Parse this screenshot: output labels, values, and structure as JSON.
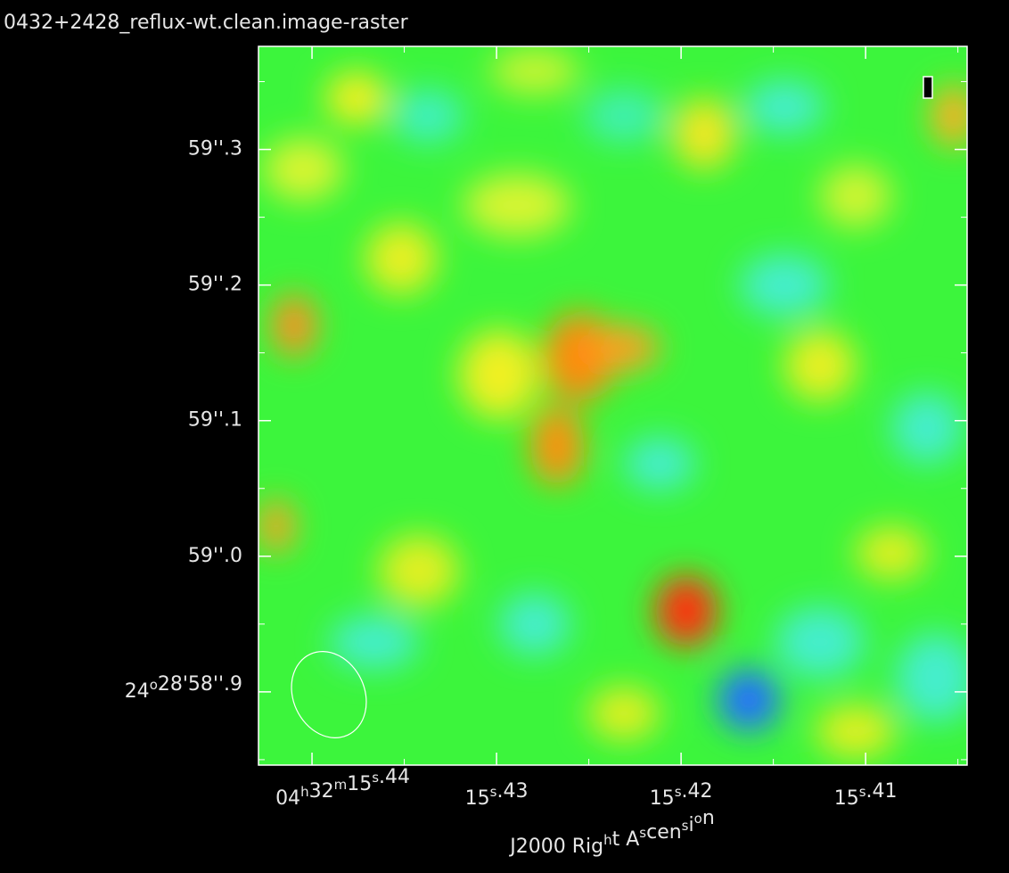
{
  "chart_data": {
    "type": "image",
    "title": "0432+2428_reflux-wt.clean.image-raster",
    "xlabel": "J2000 Right Ascension",
    "xlim": [
      15.4429,
      15.4045
    ],
    "ylim": [
      58.846,
      59.376
    ],
    "xticks": [
      {
        "value": 15.44,
        "label": "04h32m15s.44"
      },
      {
        "value": 15.43,
        "label": "15s.43"
      },
      {
        "value": 15.42,
        "label": "15s.42"
      },
      {
        "value": 15.41,
        "label": "15s.41"
      }
    ],
    "yticks": [
      {
        "value": 59.3,
        "label": "59''.3"
      },
      {
        "value": 59.2,
        "label": "59''.2"
      },
      {
        "value": 59.1,
        "label": "59''.1"
      },
      {
        "value": 59.0,
        "label": "59''.0"
      },
      {
        "value": 58.9,
        "label": "24o28'58''.9"
      }
    ]
  }
}
